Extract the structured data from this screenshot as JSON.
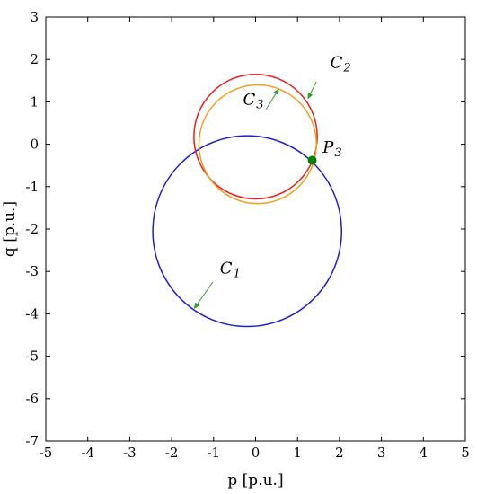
{
  "chart_data": {
    "type": "scatter",
    "xlabel": "p [p.u.]",
    "ylabel": "q [p.u.]",
    "xlim": [
      -5,
      5
    ],
    "ylim": [
      -7,
      3
    ],
    "xticks": [
      "-5",
      "-4",
      "-3",
      "-2",
      "-1",
      "0",
      "1",
      "2",
      "3",
      "4",
      "5"
    ],
    "yticks": [
      "-7",
      "-6",
      "-5",
      "-4",
      "-3",
      "-2",
      "-1",
      "0",
      "1",
      "2",
      "3"
    ],
    "grid": false,
    "series": [
      {
        "name": "C1",
        "shape": "circle",
        "center": [
          -0.2,
          -2.05
        ],
        "radius": 2.25,
        "color": "#2020c8"
      },
      {
        "name": "C2",
        "shape": "circle",
        "center": [
          0.0,
          0.18
        ],
        "radius": 1.47,
        "color": "#e82020"
      },
      {
        "name": "C3",
        "shape": "circle",
        "center": [
          0.05,
          0.0
        ],
        "radius": 1.4,
        "color": "#f0a020"
      }
    ],
    "points": [
      {
        "name": "P3",
        "x": 1.35,
        "y": -0.38,
        "color": "#008000"
      }
    ],
    "annotations": [
      {
        "main": "C",
        "sub": "1",
        "text_at": [
          -0.85,
          -3.05
        ],
        "arrow_from": [
          -1.02,
          -3.25
        ],
        "arrow_to": [
          -1.46,
          -3.87
        ]
      },
      {
        "main": "C",
        "sub": "2",
        "text_at": [
          1.78,
          1.8
        ],
        "arrow_from": [
          1.45,
          1.48
        ],
        "arrow_to": [
          1.25,
          1.08
        ]
      },
      {
        "main": "C",
        "sub": "3",
        "text_at": [
          -0.3,
          0.93
        ],
        "arrow_from": [
          0.25,
          0.82
        ],
        "arrow_to": [
          0.55,
          1.3
        ]
      },
      {
        "main": "P",
        "sub": "3",
        "text_at": [
          1.6,
          -0.2
        ]
      }
    ],
    "arrow_color": "#3a9a3a"
  }
}
